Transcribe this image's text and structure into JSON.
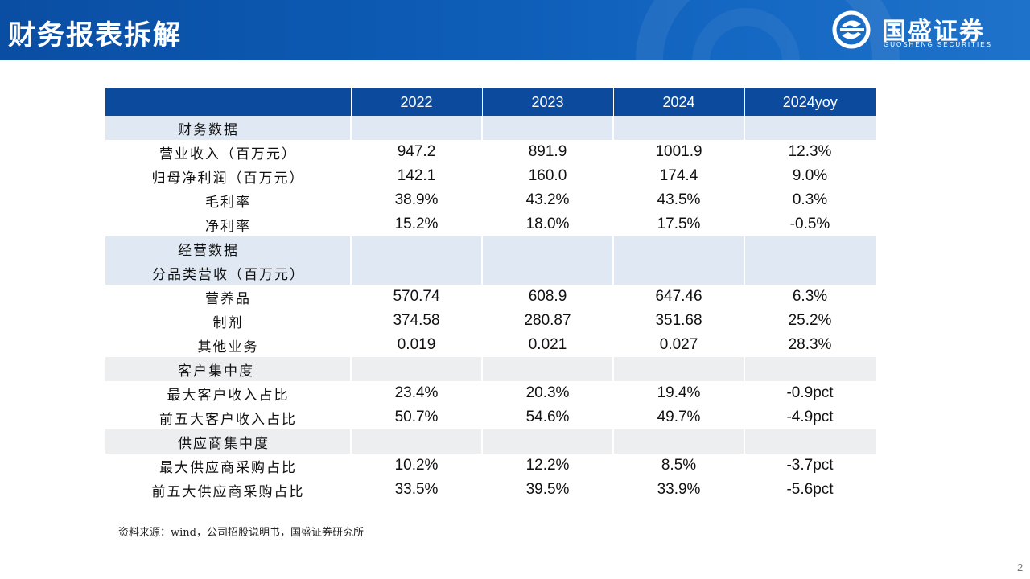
{
  "header": {
    "title": "财务报表拆解",
    "logo_cn": "国盛证券",
    "logo_en": "GUOSHENG SECURITIES"
  },
  "table": {
    "columns": [
      "",
      "2022",
      "2023",
      "2024",
      "2024yoy"
    ],
    "rows": [
      {
        "type": "section",
        "label": "财务数据"
      },
      {
        "type": "data",
        "label": "营业收入（百万元）",
        "values": [
          "947.2",
          "891.9",
          "1001.9",
          "12.3%"
        ]
      },
      {
        "type": "data",
        "label": "归母净利润（百万元）",
        "values": [
          "142.1",
          "160.0",
          "174.4",
          "9.0%"
        ]
      },
      {
        "type": "data",
        "label": "毛利率",
        "values": [
          "38.9%",
          "43.2%",
          "43.5%",
          "0.3%"
        ]
      },
      {
        "type": "data",
        "label": "净利率",
        "values": [
          "15.2%",
          "18.0%",
          "17.5%",
          "-0.5%"
        ]
      },
      {
        "type": "section",
        "label": "经营数据"
      },
      {
        "type": "section-sub",
        "label": "分品类营收（百万元）"
      },
      {
        "type": "data",
        "label": "营养品",
        "values": [
          "570.74",
          "608.9",
          "647.46",
          "6.3%"
        ]
      },
      {
        "type": "data",
        "label": "制剂",
        "values": [
          "374.58",
          "280.87",
          "351.68",
          "25.2%"
        ]
      },
      {
        "type": "data",
        "label": "其他业务",
        "values": [
          "0.019",
          "0.021",
          "0.027",
          "28.3%"
        ]
      },
      {
        "type": "section-grey",
        "label": "客户集中度"
      },
      {
        "type": "data",
        "label": "最大客户收入占比",
        "values": [
          "23.4%",
          "20.3%",
          "19.4%",
          "-0.9pct"
        ]
      },
      {
        "type": "data",
        "label": "前五大客户收入占比",
        "values": [
          "50.7%",
          "54.6%",
          "49.7%",
          "-4.9pct"
        ]
      },
      {
        "type": "section-grey",
        "label": "供应商集中度"
      },
      {
        "type": "data",
        "label": "最大供应商采购占比",
        "values": [
          "10.2%",
          "12.2%",
          "8.5%",
          "-3.7pct"
        ]
      },
      {
        "type": "data",
        "label": "前五大供应商采购占比",
        "values": [
          "33.5%",
          "39.5%",
          "33.9%",
          "-5.6pct"
        ]
      }
    ]
  },
  "footer": {
    "source": "资料来源：wind，公司招股说明书，国盛证券研究所",
    "page_number": "2"
  },
  "colors": {
    "header_blue": "#0d5cb6",
    "table_header": "#0b4a9c",
    "section_blue": "#dfe8f3",
    "section_grey": "#eceeef"
  }
}
